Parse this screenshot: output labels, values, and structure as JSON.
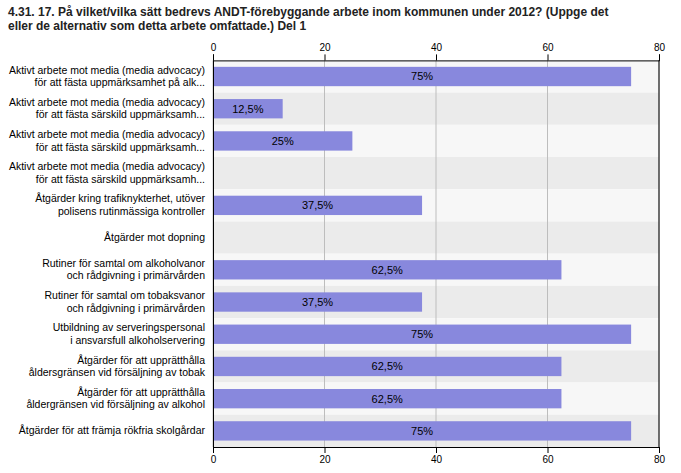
{
  "chart_data": {
    "type": "bar",
    "orientation": "horizontal",
    "title": "4.31. 17. På vilket/vilka sätt bedrevs ANDT-förebyggande arbete inom kommunen under 2012? (Uppge det\neller de alternativ som detta arbete omfattade.) Del 1",
    "categories": [
      "Aktivt arbete mot media (media advocacy)\nför att fästa uppmärksamhet på alk...",
      "Aktivt arbete mot media (media advocacy)\nför att fästa särskild uppmärksamh...",
      "Aktivt arbete mot media (media advocacy)\nför att fästa särskild uppmärksamh...",
      "Aktivt arbete mot media (media advocacy)\nför att fästa särskild uppmärksamh...",
      "Åtgärder kring trafiknykterhet, utöver\npolisens rutinmässiga kontroller",
      "Åtgärder mot dopning",
      "Rutiner för samtal om alkoholvanor\noch rådgivning i primärvården",
      "Rutiner för samtal om tobaksvanor\noch rådgivning i primärvården",
      "Utbildning av serveringspersonal\ni ansvarsfull alkoholservering",
      "Åtgärder för att upprätthålla\nåldersgränsen vid försäljning av tobak",
      "Åtgärder för att upprätthålla\nåldergränsen vid försäljning av alkohol",
      "Åtgärder för att främja rökfria skolgårdar"
    ],
    "values": [
      75,
      12.5,
      25,
      0,
      37.5,
      0,
      62.5,
      37.5,
      75,
      62.5,
      62.5,
      75
    ],
    "value_labels": [
      "75%",
      "12,5%",
      "25%",
      null,
      "37,5%",
      null,
      "62,5%",
      "37,5%",
      "75%",
      "62,5%",
      "62,5%",
      "75%"
    ],
    "data_labels": true,
    "color": "#8888DD",
    "xlim": [
      0,
      80
    ],
    "xticks": [
      0,
      20,
      40,
      60,
      80
    ],
    "grid": true
  }
}
